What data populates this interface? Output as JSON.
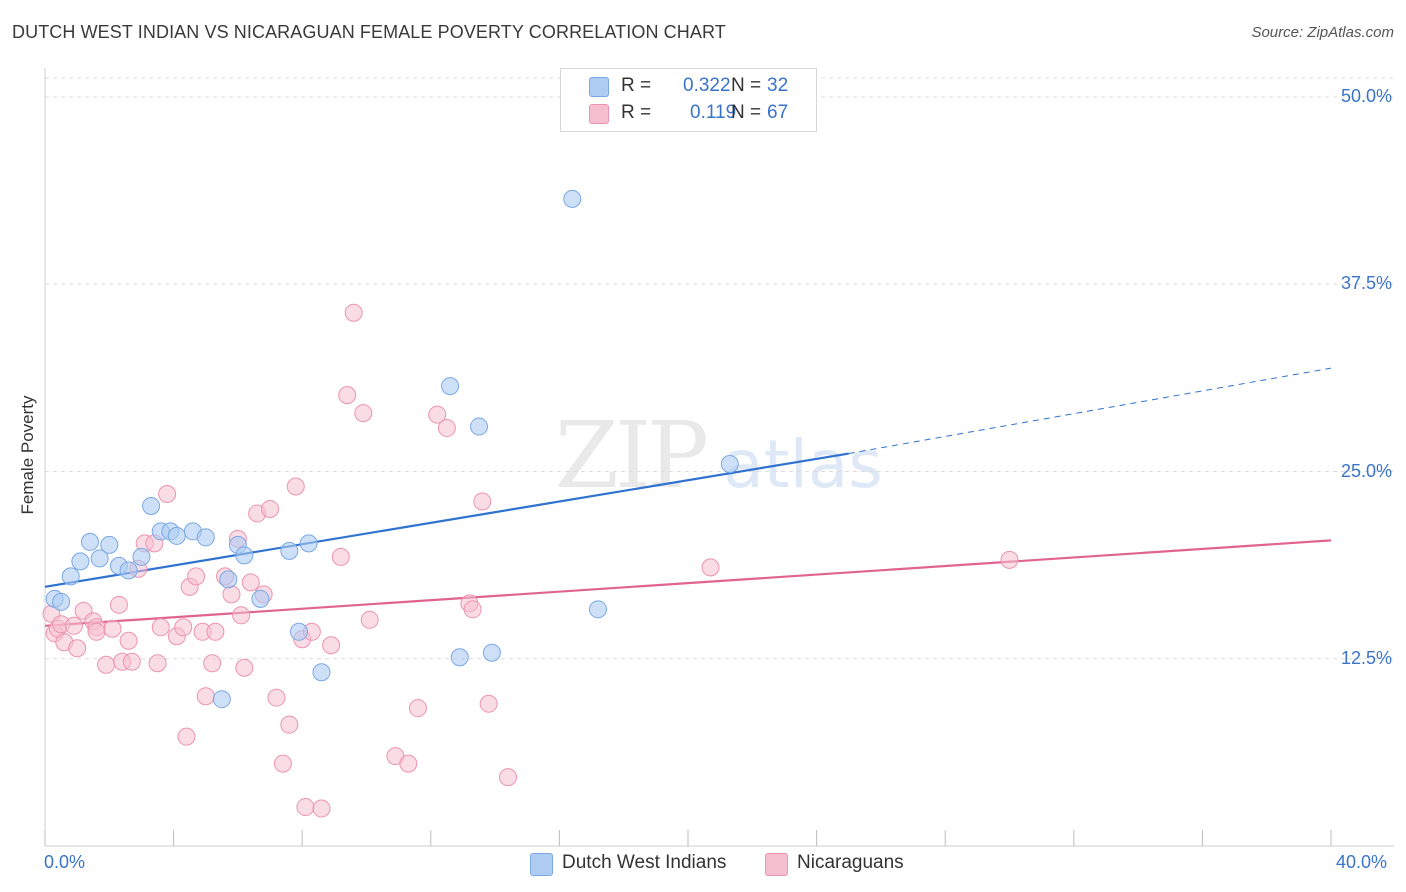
{
  "title": "DUTCH WEST INDIAN VS NICARAGUAN FEMALE POVERTY CORRELATION CHART",
  "source": "Source: ZipAtlas.com",
  "watermark": {
    "zip": "ZIP",
    "atlas": "atlas"
  },
  "legend_top": {
    "rows": [
      {
        "r_label": "R =",
        "r_value": "0.322",
        "n_label": "N =",
        "n_value": "32",
        "color": "#aecbf2"
      },
      {
        "r_label": "R =",
        "r_value": "0.119",
        "n_label": "N =",
        "n_value": "67",
        "color": "#f6bfd0"
      }
    ]
  },
  "legend_bottom": {
    "items": [
      {
        "label": "Dutch West Indians",
        "color": "#aecbf2"
      },
      {
        "label": "Nicaraguans",
        "color": "#f6bfd0"
      }
    ]
  },
  "colors": {
    "blue_fill": "#aecbf2",
    "blue_stroke": "#7aa8e4",
    "blue_line": "#2f72d0",
    "pink_fill": "#f6bfd0",
    "pink_stroke": "#ec94b0",
    "pink_line": "#e0648f",
    "grid": "#dcdcdc",
    "tick_label": "#3a74c9"
  },
  "chart_data": {
    "type": "scatter",
    "ylabel": "Female Poverty",
    "xlim": [
      0,
      40
    ],
    "ylim": [
      0,
      50
    ],
    "x_tick_labels": [
      "0.0%",
      "40.0%"
    ],
    "y_ticks": [
      12.5,
      25,
      37.5,
      50
    ],
    "y_tick_labels": [
      "12.5%",
      "25.0%",
      "37.5%",
      "50.0%"
    ],
    "grid": "horizontal dashed",
    "series": [
      {
        "name": "Dutch West Indians",
        "color": "#aecbf2",
        "points": [
          [
            0.3,
            16.5
          ],
          [
            0.5,
            16.3
          ],
          [
            0.8,
            18.0
          ],
          [
            1.1,
            19.0
          ],
          [
            1.4,
            20.3
          ],
          [
            1.7,
            19.2
          ],
          [
            2.0,
            20.1
          ],
          [
            2.3,
            18.7
          ],
          [
            2.6,
            18.4
          ],
          [
            3.0,
            19.3
          ],
          [
            3.3,
            22.7
          ],
          [
            3.6,
            21.0
          ],
          [
            3.9,
            21.0
          ],
          [
            4.1,
            20.7
          ],
          [
            4.6,
            21.0
          ],
          [
            5.0,
            20.6
          ],
          [
            5.5,
            9.8
          ],
          [
            5.7,
            17.8
          ],
          [
            6.0,
            20.1
          ],
          [
            6.2,
            19.4
          ],
          [
            6.7,
            16.5
          ],
          [
            7.6,
            19.7
          ],
          [
            7.9,
            14.3
          ],
          [
            8.2,
            20.2
          ],
          [
            8.6,
            11.6
          ],
          [
            12.6,
            30.7
          ],
          [
            12.9,
            12.6
          ],
          [
            13.5,
            28.0
          ],
          [
            13.9,
            12.9
          ],
          [
            16.4,
            43.2
          ],
          [
            17.2,
            15.8
          ],
          [
            21.3,
            25.5
          ]
        ],
        "trend": {
          "x": [
            0,
            25
          ],
          "y": [
            17.3,
            26.2
          ]
        },
        "trend_dashed": {
          "x": [
            25,
            40
          ],
          "y": [
            26.2,
            31.9
          ]
        }
      },
      {
        "name": "Nicaraguans",
        "color": "#f6bfd0",
        "points": [
          [
            0.2,
            15.5
          ],
          [
            0.3,
            14.2
          ],
          [
            0.4,
            14.5
          ],
          [
            0.5,
            14.8
          ],
          [
            0.6,
            13.6
          ],
          [
            0.9,
            14.7
          ],
          [
            1.0,
            13.2
          ],
          [
            1.2,
            15.7
          ],
          [
            1.5,
            15.0
          ],
          [
            1.6,
            14.6
          ],
          [
            1.9,
            12.1
          ],
          [
            2.1,
            14.5
          ],
          [
            2.3,
            16.1
          ],
          [
            2.4,
            12.3
          ],
          [
            2.6,
            13.7
          ],
          [
            2.7,
            12.3
          ],
          [
            2.9,
            18.5
          ],
          [
            3.1,
            20.2
          ],
          [
            3.4,
            20.2
          ],
          [
            3.5,
            12.2
          ],
          [
            3.6,
            14.6
          ],
          [
            3.8,
            23.5
          ],
          [
            4.1,
            14.0
          ],
          [
            4.3,
            14.6
          ],
          [
            4.4,
            7.3
          ],
          [
            4.5,
            17.3
          ],
          [
            4.7,
            18.0
          ],
          [
            4.9,
            14.3
          ],
          [
            5.0,
            10.0
          ],
          [
            5.2,
            12.2
          ],
          [
            5.3,
            14.3
          ],
          [
            5.6,
            18.0
          ],
          [
            5.8,
            16.8
          ],
          [
            6.0,
            20.5
          ],
          [
            6.1,
            15.4
          ],
          [
            6.2,
            11.9
          ],
          [
            6.4,
            17.6
          ],
          [
            6.6,
            22.2
          ],
          [
            6.8,
            16.8
          ],
          [
            7.0,
            22.5
          ],
          [
            7.2,
            9.9
          ],
          [
            7.4,
            5.5
          ],
          [
            7.6,
            8.1
          ],
          [
            7.8,
            24.0
          ],
          [
            8.0,
            13.8
          ],
          [
            8.1,
            2.6
          ],
          [
            8.3,
            14.3
          ],
          [
            8.6,
            2.5
          ],
          [
            8.9,
            13.4
          ],
          [
            9.2,
            19.3
          ],
          [
            9.4,
            30.1
          ],
          [
            9.6,
            35.6
          ],
          [
            9.9,
            28.9
          ],
          [
            10.1,
            15.1
          ],
          [
            10.9,
            6.0
          ],
          [
            11.3,
            5.5
          ],
          [
            11.6,
            9.2
          ],
          [
            12.2,
            28.8
          ],
          [
            12.5,
            27.9
          ],
          [
            13.2,
            16.2
          ],
          [
            13.3,
            15.8
          ],
          [
            13.6,
            23.0
          ],
          [
            13.8,
            9.5
          ],
          [
            14.4,
            4.6
          ],
          [
            20.7,
            18.6
          ],
          [
            30.0,
            19.1
          ],
          [
            1.6,
            14.3
          ]
        ],
        "trend": {
          "x": [
            0,
            40
          ],
          "y": [
            14.7,
            20.4
          ]
        }
      }
    ]
  }
}
